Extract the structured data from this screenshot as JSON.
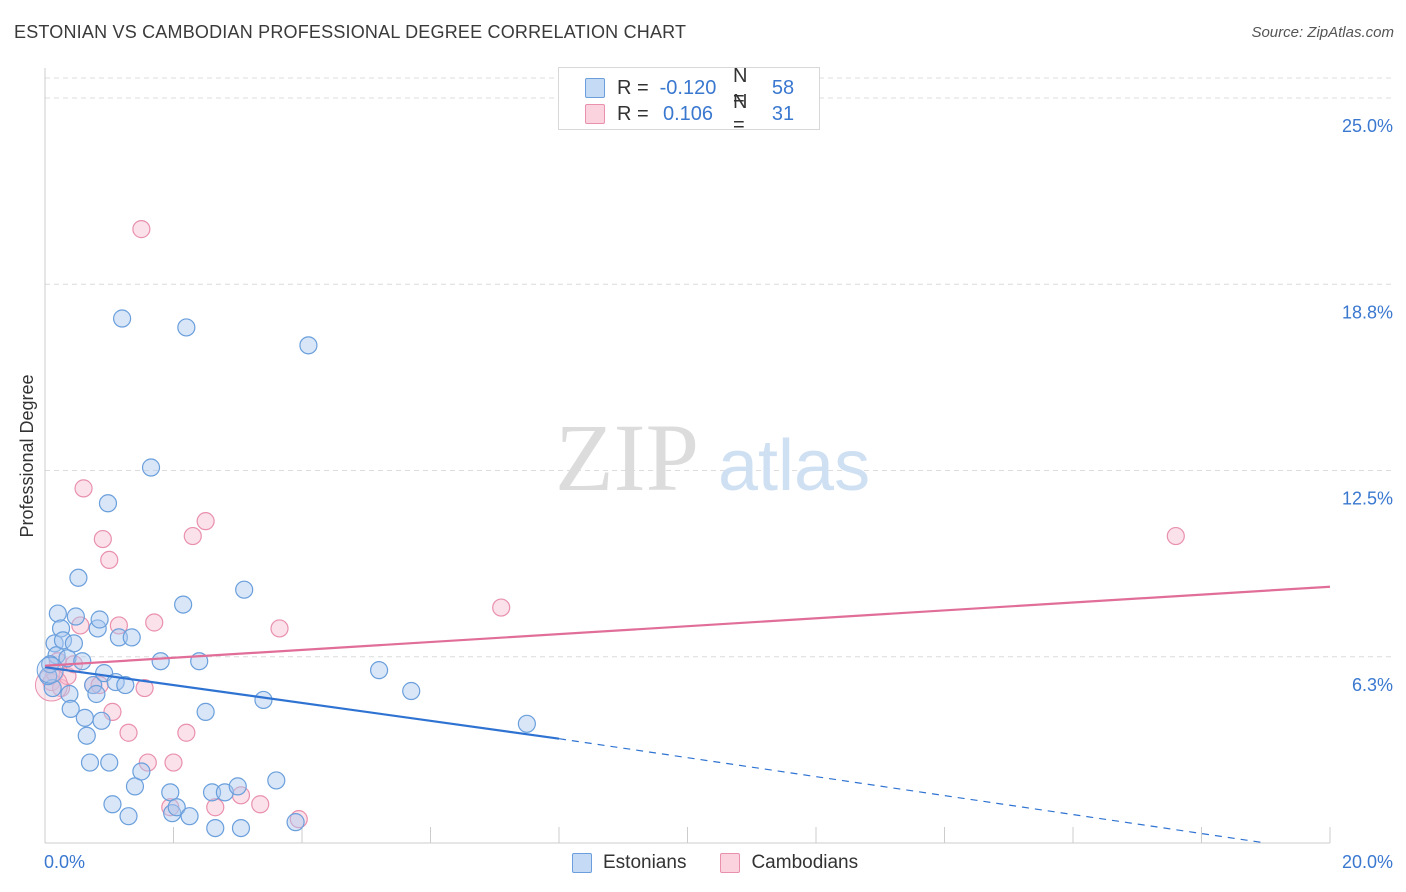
{
  "title": "ESTONIAN VS CAMBODIAN PROFESSIONAL DEGREE CORRELATION CHART",
  "source": "Source: ZipAtlas.com",
  "watermark": {
    "zip": "ZIP",
    "atlas": "atlas"
  },
  "colors": {
    "blue_fill": "#a9c8f0",
    "blue_stroke": "#6a9fdc",
    "blue_line": "#2f73d2",
    "pink_fill": "#f7bfd0",
    "pink_stroke": "#e990ad",
    "pink_line": "#e16e98",
    "tick_label": "#3a78d0",
    "grid": "#dcdcdc"
  },
  "legend_top": [
    {
      "series": "Estonians",
      "r_label": "R =",
      "r_value": "-0.120",
      "n_label": "N =",
      "n_value": "58"
    },
    {
      "series": "Cambodians",
      "r_label": "R =",
      "r_value": "0.106",
      "n_label": "N =",
      "n_value": "31"
    }
  ],
  "chart_data": {
    "type": "scatter",
    "title": "ESTONIAN VS CAMBODIAN PROFESSIONAL DEGREE CORRELATION CHART",
    "xlabel": "",
    "ylabel": "Professional Degree",
    "xlim": [
      0,
      20
    ],
    "ylim": [
      0,
      25
    ],
    "x_tick_labels": [
      "0.0%",
      "20.0%"
    ],
    "y_ticks": [
      6.25,
      12.5,
      18.75,
      25.0
    ],
    "y_tick_labels": [
      "6.3%",
      "12.5%",
      "18.8%",
      "25.0%"
    ],
    "grid": true,
    "legend_position": "bottom-center",
    "series": [
      {
        "name": "Estonians",
        "points": [
          [
            0.12,
            5.2
          ],
          [
            0.15,
            6.7
          ],
          [
            0.18,
            6.3
          ],
          [
            0.2,
            7.7
          ],
          [
            0.25,
            7.2
          ],
          [
            0.28,
            6.8
          ],
          [
            0.35,
            6.2
          ],
          [
            0.38,
            5.0
          ],
          [
            0.4,
            4.5
          ],
          [
            0.45,
            6.7
          ],
          [
            0.48,
            7.6
          ],
          [
            0.52,
            8.9
          ],
          [
            0.58,
            6.1
          ],
          [
            0.62,
            4.2
          ],
          [
            0.65,
            3.6
          ],
          [
            0.7,
            2.7
          ],
          [
            0.75,
            5.3
          ],
          [
            0.8,
            5.0
          ],
          [
            0.82,
            7.2
          ],
          [
            0.85,
            7.5
          ],
          [
            0.88,
            4.1
          ],
          [
            0.92,
            5.7
          ],
          [
            0.98,
            11.4
          ],
          [
            1.0,
            2.7
          ],
          [
            1.05,
            1.3
          ],
          [
            1.1,
            5.4
          ],
          [
            1.15,
            6.9
          ],
          [
            1.2,
            17.6
          ],
          [
            1.3,
            0.9
          ],
          [
            1.35,
            6.9
          ],
          [
            1.4,
            1.9
          ],
          [
            1.5,
            2.4
          ],
          [
            1.65,
            12.6
          ],
          [
            1.8,
            6.1
          ],
          [
            1.95,
            1.7
          ],
          [
            1.98,
            1.0
          ],
          [
            2.05,
            1.2
          ],
          [
            2.15,
            8.0
          ],
          [
            2.2,
            17.3
          ],
          [
            2.25,
            0.9
          ],
          [
            2.4,
            6.1
          ],
          [
            2.5,
            4.4
          ],
          [
            2.6,
            1.7
          ],
          [
            2.65,
            0.5
          ],
          [
            2.8,
            1.7
          ],
          [
            3.0,
            1.9
          ],
          [
            3.1,
            8.5
          ],
          [
            3.05,
            0.5
          ],
          [
            3.4,
            4.8
          ],
          [
            3.6,
            2.1
          ],
          [
            3.9,
            0.7
          ],
          [
            4.1,
            16.7
          ],
          [
            5.2,
            5.8
          ],
          [
            5.7,
            5.1
          ],
          [
            7.5,
            4.0
          ],
          [
            0.05,
            5.6
          ],
          [
            0.08,
            6.0
          ],
          [
            1.25,
            5.3
          ]
        ]
      },
      {
        "name": "Cambodians",
        "points": [
          [
            0.1,
            5.4
          ],
          [
            0.15,
            5.7
          ],
          [
            0.2,
            6.1
          ],
          [
            0.25,
            5.2
          ],
          [
            0.35,
            5.6
          ],
          [
            0.45,
            6.0
          ],
          [
            0.55,
            7.3
          ],
          [
            0.6,
            11.9
          ],
          [
            0.75,
            5.3
          ],
          [
            0.85,
            5.3
          ],
          [
            0.9,
            10.2
          ],
          [
            1.0,
            9.5
          ],
          [
            1.05,
            4.4
          ],
          [
            1.15,
            7.3
          ],
          [
            1.3,
            3.7
          ],
          [
            1.5,
            20.6
          ],
          [
            1.55,
            5.2
          ],
          [
            1.6,
            2.7
          ],
          [
            1.7,
            7.4
          ],
          [
            1.95,
            1.2
          ],
          [
            2.0,
            2.7
          ],
          [
            2.2,
            3.7
          ],
          [
            2.3,
            10.3
          ],
          [
            2.5,
            10.8
          ],
          [
            2.65,
            1.2
          ],
          [
            3.05,
            1.6
          ],
          [
            3.35,
            1.3
          ],
          [
            3.65,
            7.2
          ],
          [
            3.95,
            0.8
          ],
          [
            7.1,
            7.9
          ],
          [
            17.6,
            10.3
          ]
        ]
      }
    ],
    "trendlines": [
      {
        "series": "Estonians",
        "solid": [
          [
            0,
            5.9
          ],
          [
            8.0,
            3.5
          ]
        ],
        "dashed": [
          [
            8.0,
            3.5
          ],
          [
            19.0,
            0.0
          ]
        ]
      },
      {
        "series": "Cambodians",
        "solid": [
          [
            0,
            5.95
          ],
          [
            20.0,
            8.6
          ]
        ]
      }
    ]
  }
}
